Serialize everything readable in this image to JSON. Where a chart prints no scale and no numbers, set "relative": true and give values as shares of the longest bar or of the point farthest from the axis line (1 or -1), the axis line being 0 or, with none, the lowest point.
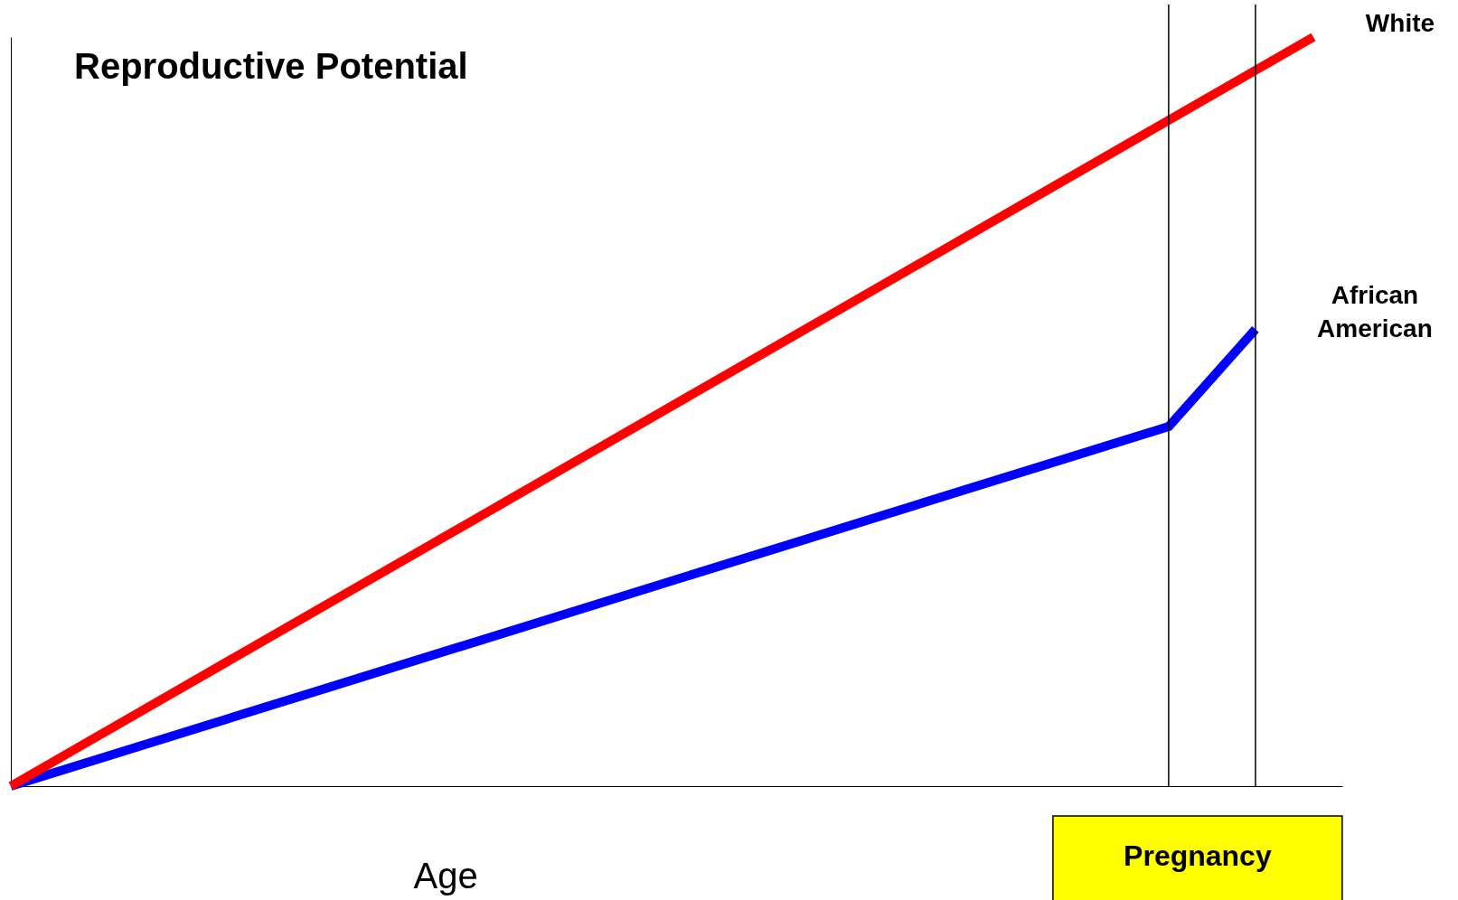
{
  "chart_data": {
    "type": "line",
    "title": "Reproductive Potential",
    "xlabel": "Age",
    "relative": true,
    "categories": [
      null,
      null,
      null,
      null,
      null,
      null,
      null,
      null,
      null,
      null,
      null,
      null,
      null,
      null,
      null,
      null,
      null,
      null,
      null,
      null,
      null,
      null,
      null,
      null,
      null,
      null,
      null,
      null,
      null,
      null,
      null,
      null,
      null,
      null,
      null,
      null,
      null,
      null,
      null,
      null,
      null,
      null,
      null,
      null,
      null,
      null
    ],
    "series": [
      {
        "name": "African American",
        "color": "#0000ff",
        "values": [
          0,
          null,
          null,
          null,
          null,
          null,
          null,
          null,
          null,
          null,
          null,
          null,
          null,
          null,
          null,
          null,
          null,
          null,
          null,
          null,
          null,
          null,
          null,
          null,
          null,
          null,
          null,
          null,
          null,
          null,
          null,
          null,
          null,
          null,
          null,
          null,
          null,
          null,
          null,
          null,
          0.48,
          null,
          null,
          0.61,
          null,
          null
        ]
      },
      {
        "name": "White",
        "color": "#ff0000",
        "values": [
          0,
          null,
          null,
          null,
          null,
          null,
          null,
          null,
          null,
          null,
          null,
          null,
          null,
          null,
          null,
          null,
          null,
          null,
          null,
          null,
          null,
          null,
          null,
          null,
          null,
          null,
          null,
          null,
          null,
          null,
          null,
          null,
          null,
          null,
          null,
          null,
          null,
          null,
          null,
          null,
          null,
          null,
          null,
          null,
          null,
          1
        ]
      }
    ],
    "annotations": [
      "Pregnancy"
    ],
    "legend": false,
    "marker": "none",
    "line_style": "solid"
  }
}
